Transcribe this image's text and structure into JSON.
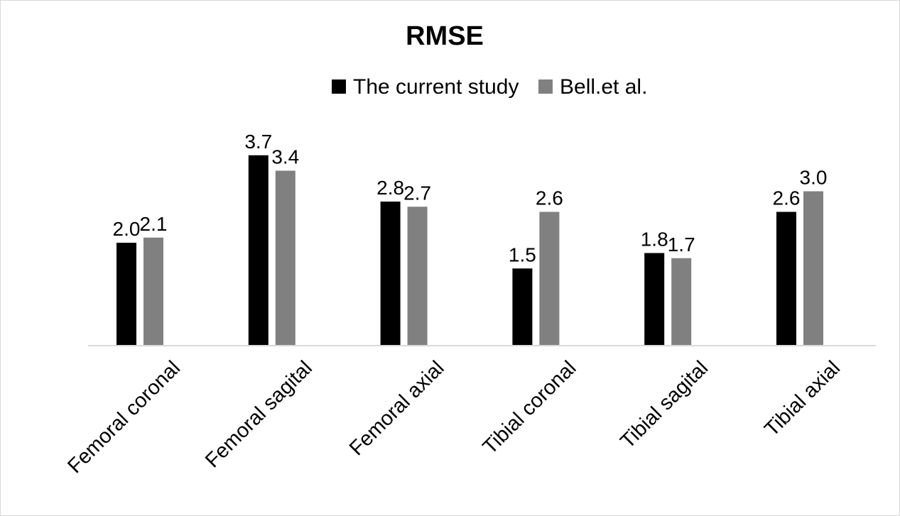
{
  "chart_data": {
    "type": "bar",
    "title": "RMSE",
    "categories": [
      "Femoral coronal",
      "Femoral sagital",
      "Femoral axial",
      "Tibial coronal",
      "Tibial sagital",
      "Tibial axial"
    ],
    "series": [
      {
        "name": "The current study",
        "color": "#000000",
        "values": [
          2.0,
          3.7,
          2.8,
          1.5,
          1.8,
          2.6
        ],
        "labels": [
          "2.0",
          "3.7",
          "2.8",
          "1.5",
          "1.8",
          "2.6"
        ]
      },
      {
        "name": "Bell.et al.",
        "color": "#808080",
        "values": [
          2.1,
          3.4,
          2.7,
          2.6,
          1.7,
          3.0
        ],
        "labels": [
          "2.1",
          "3.4",
          "2.7",
          "2.6",
          "1.7",
          "3.0"
        ]
      }
    ],
    "xlabel": "",
    "ylabel": "",
    "ylim": [
      0,
      4
    ],
    "grid": false,
    "legend": "top-center",
    "data_labels": true
  }
}
